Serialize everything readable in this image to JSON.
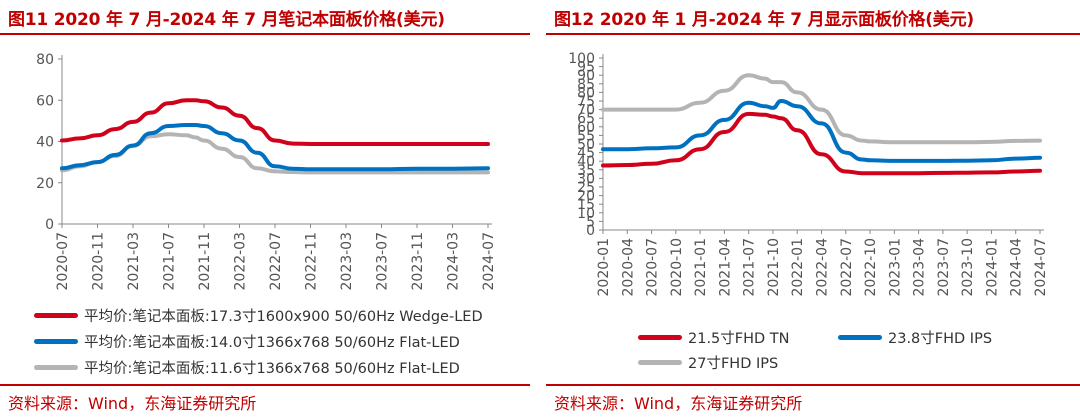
{
  "left": {
    "title": "图11  2020 年 7 月-2024 年 7 月笔记本面板价格(美元)",
    "source": "资料来源：Wind，东海证券研究所"
  },
  "right": {
    "title": "图12  2020 年 1 月-2024 年 7 月显示面板价格(美元)",
    "source": "资料来源：Wind，东海证券研究所"
  },
  "chart_data": [
    {
      "type": "line",
      "title": "2020 年 7 月-2024 年 7 月笔记本面板价格(美元)",
      "ylim": [
        0,
        80
      ],
      "y_ticks": [
        "0",
        "20",
        "40",
        "60",
        "80"
      ],
      "x_tick_labels": [
        "2020-07",
        "2020-11",
        "2021-03",
        "2021-07",
        "2021-11",
        "2022-03",
        "2022-07",
        "2022-11",
        "2023-03",
        "2023-07",
        "2023-11",
        "2024-03",
        "2024-07"
      ],
      "x": [
        "2020-07",
        "2020-09",
        "2020-11",
        "2021-01",
        "2021-03",
        "2021-05",
        "2021-07",
        "2021-09",
        "2021-10",
        "2021-11",
        "2022-01",
        "2022-03",
        "2022-05",
        "2022-07",
        "2022-09",
        "2022-11",
        "2023-03",
        "2023-07",
        "2023-11",
        "2024-03",
        "2024-07"
      ],
      "series": [
        {
          "name": "平均价:笔记本面板:17.3寸1600x900 50/60Hz Wedge-LED",
          "color": "#d0021b",
          "values": [
            40.5,
            41.5,
            43,
            46,
            49.5,
            54,
            58.5,
            60,
            60,
            59.5,
            56.5,
            52.5,
            46.5,
            40.5,
            39,
            38.8,
            38.8,
            38.8,
            38.8,
            38.8,
            38.8
          ]
        },
        {
          "name": "平均价:笔记本面板:14.0寸1366x768 50/60Hz Flat-LED",
          "color": "#0070c0",
          "values": [
            27,
            28.5,
            30,
            33.5,
            38,
            44,
            47.5,
            48,
            48,
            47.5,
            44,
            40.5,
            34.5,
            28,
            26.8,
            26.5,
            26.5,
            26.5,
            26.8,
            26.8,
            27
          ]
        },
        {
          "name": "平均价:笔记本面板:11.6寸1366x768 50/60Hz Flat-LED",
          "color": "#b4b4b4",
          "values": [
            26,
            28,
            30,
            33,
            38,
            42.5,
            43.5,
            43,
            42,
            40.5,
            36.5,
            32.5,
            27,
            25.5,
            25.2,
            25,
            25,
            25,
            25,
            25,
            25
          ]
        }
      ]
    },
    {
      "type": "line",
      "title": "2020 年 1 月-2024 年 7 月显示面板价格(美元)",
      "ylim": [
        0,
        100
      ],
      "y_ticks": [
        "0",
        "5",
        "10",
        "15",
        "20",
        "25",
        "30",
        "35",
        "40",
        "45",
        "50",
        "55",
        "60",
        "65",
        "70",
        "75",
        "80",
        "85",
        "90",
        "95",
        "100"
      ],
      "x_tick_labels": [
        "2020-01",
        "2020-04",
        "2020-07",
        "2020-10",
        "2021-01",
        "2021-04",
        "2021-07",
        "2021-10",
        "2022-01",
        "2022-04",
        "2022-07",
        "2022-10",
        "2023-01",
        "2023-04",
        "2023-07",
        "2023-10",
        "2024-01",
        "2024-04",
        "2024-07"
      ],
      "x": [
        "2020-01",
        "2020-04",
        "2020-07",
        "2020-10",
        "2021-01",
        "2021-04",
        "2021-07",
        "2021-09",
        "2021-10",
        "2021-11",
        "2022-01",
        "2022-04",
        "2022-07",
        "2022-09",
        "2022-10",
        "2023-01",
        "2023-04",
        "2023-07",
        "2023-10",
        "2024-01",
        "2024-04",
        "2024-07"
      ],
      "series": [
        {
          "name": "21.5寸FHD TN",
          "color": "#d0021b",
          "values": [
            37.5,
            37.8,
            38.5,
            40.5,
            47,
            57,
            67.5,
            67,
            66,
            65,
            58,
            44,
            34,
            33,
            33,
            33,
            33,
            33.2,
            33.3,
            33.5,
            34,
            34.5
          ]
        },
        {
          "name": "23.8寸FHD IPS",
          "color": "#0070c0",
          "values": [
            47,
            47,
            47.5,
            48,
            55,
            64,
            74,
            72,
            71,
            75,
            72,
            62,
            45,
            41,
            40.5,
            40.2,
            40.2,
            40.2,
            40.3,
            40.5,
            41.5,
            42
          ]
        },
        {
          "name": "27寸FHD IPS",
          "color": "#b4b4b4",
          "values": [
            70,
            70,
            70,
            70,
            74,
            81,
            90,
            88,
            86,
            86,
            80,
            70,
            55,
            52,
            51.5,
            51,
            51,
            51,
            51,
            51.2,
            51.8,
            52
          ]
        }
      ]
    }
  ]
}
